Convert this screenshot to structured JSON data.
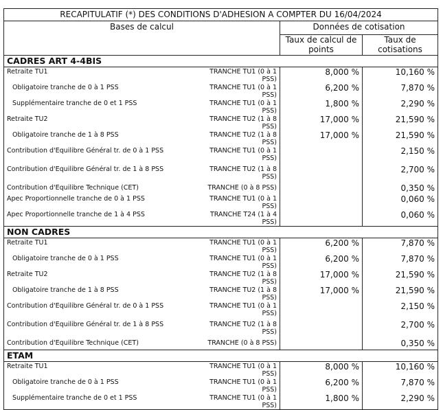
{
  "title": "RECAPITULATIF (*) DES CONDITIONS D'ADHESION A COMPTER DU 16/04/2024",
  "header": {
    "bases": "Bases de calcul",
    "donnees": "Données de cotisation",
    "points": "Taux de calcul de points",
    "taux": "Taux de cotisations"
  },
  "sections": [
    {
      "title": "CADRES ART 4-4BIS",
      "rows": [
        {
          "label": "Retraite TU1",
          "tranche": "TRANCHE TU1 (0 à 1 PSS)",
          "points": "8,000 %",
          "taux": "10,160 %"
        },
        {
          "label": "Obligatoire tranche de 0 à 1 PSS",
          "indent": true,
          "tranche": "TRANCHE TU1 (0 à 1 PSS)",
          "points": "6,200 %",
          "taux": "7,870 %"
        },
        {
          "label": "Supplémentaire tranche de 0 et 1 PSS",
          "indent": true,
          "tranche": "TRANCHE TU1 (0 à 1 PSS)",
          "points": "1,800 %",
          "taux": "2,290 %"
        },
        {
          "label": "Retraite TU2",
          "tranche": "TRANCHE TU2 (1 à 8 PSS)",
          "points": "17,000 %",
          "taux": "21,590 %"
        },
        {
          "label": "Obligatoire tranche de 1 à 8 PSS",
          "indent": true,
          "tranche": "TRANCHE TU2 (1 à 8 PSS)",
          "points": "17,000 %",
          "taux": "21,590 %"
        },
        {
          "label": "Contribution d'Equilibre Général tr. de 0 à 1 PSS",
          "tranche": "TRANCHE TU1 (0 à 1 PSS)",
          "points": null,
          "taux": "2,150 %"
        },
        {
          "label": "Contribution d'Equilibre Général tr. de 1 à 8 PSS",
          "tranche": "TRANCHE TU2 (1 à 8 PSS)",
          "points": null,
          "taux": "2,700 %"
        },
        {
          "label": "Contribution d'Equilibre Technique (CET)",
          "tranche": "TRANCHE (0 à 8 PSS)",
          "points": null,
          "taux": "0,350 %"
        },
        {
          "label": "Apec Proportionnelle tranche de 0 à 1 PSS",
          "tranche": "TRANCHE TU1 (0 à 1 PSS)",
          "points": null,
          "taux": "0,060 %"
        },
        {
          "label": "Apec Proportionnelle tranche de 1 à 4 PSS",
          "tranche": "TRANCHE T24 (1 à 4 PSS)",
          "points": null,
          "taux": "0,060 %"
        }
      ]
    },
    {
      "title": "NON CADRES",
      "rows": [
        {
          "label": "Retraite TU1",
          "tranche": "TRANCHE TU1 (0 à 1 PSS)",
          "points": "6,200 %",
          "taux": "7,870 %"
        },
        {
          "label": "Obligatoire tranche de 0 à 1 PSS",
          "indent": true,
          "tranche": "TRANCHE TU1 (0 à 1 PSS)",
          "points": "6,200 %",
          "taux": "7,870 %"
        },
        {
          "label": "Retraite TU2",
          "tranche": "TRANCHE TU2 (1 à 8 PSS)",
          "points": "17,000 %",
          "taux": "21,590 %"
        },
        {
          "label": "Obligatoire tranche de 1 à 8 PSS",
          "indent": true,
          "tranche": "TRANCHE TU2 (1 à 8 PSS)",
          "points": "17,000 %",
          "taux": "21,590 %"
        },
        {
          "label": "Contribution d'Equilibre Général tr. de 0 à 1 PSS",
          "tranche": "TRANCHE TU1 (0 à 1 PSS)",
          "points": null,
          "taux": "2,150 %"
        },
        {
          "label": "Contribution d'Equilibre Général tr. de 1 à 8 PSS",
          "tranche": "TRANCHE TU2 (1 à 8 PSS)",
          "points": null,
          "taux": "2,700 %"
        },
        {
          "label": "Contribution d'Equilibre Technique (CET)",
          "tranche": "TRANCHE (0 à 8 PSS)",
          "points": null,
          "taux": "0,350 %"
        }
      ]
    },
    {
      "title": "ETAM",
      "rows": [
        {
          "label": "Retraite TU1",
          "tranche": "TRANCHE TU1 (0 à 1 PSS)",
          "points": "8,000 %",
          "taux": "10,160 %"
        },
        {
          "label": "Obligatoire tranche de 0 à 1 PSS",
          "indent": true,
          "tranche": "TRANCHE TU1 (0 à 1 PSS)",
          "points": "6,200 %",
          "taux": "7,870 %"
        },
        {
          "label": "Supplémentaire tranche de 0 et 1 PSS",
          "indent": true,
          "tranche": "TRANCHE TU1 (0 à 1 PSS)",
          "points": "1,800 %",
          "taux": "2,290 %"
        }
      ]
    }
  ]
}
